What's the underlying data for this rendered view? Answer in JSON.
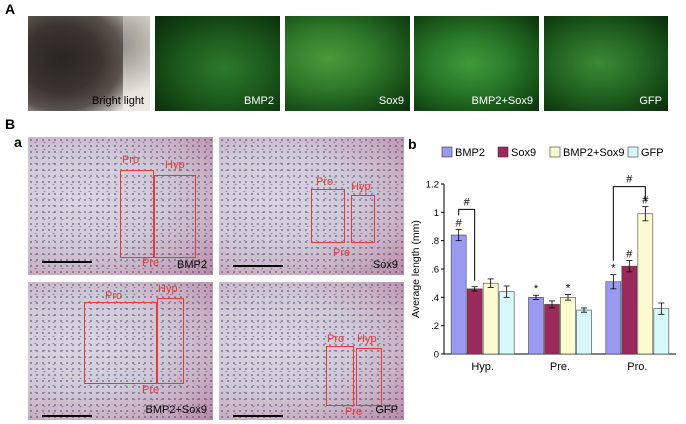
{
  "labels": {
    "A": "A",
    "B": "B",
    "a": "a",
    "b": "b"
  },
  "rowA": [
    {
      "name": "bright-light-panel",
      "label": "Bright light"
    },
    {
      "name": "bmp2-fluor-panel",
      "label": "BMP2"
    },
    {
      "name": "sox9-fluor-panel",
      "label": "Sox9"
    },
    {
      "name": "bmp2-sox9-fluor-panel",
      "label": "BMP2+Sox9"
    },
    {
      "name": "gfp-fluor-panel",
      "label": "GFP"
    }
  ],
  "histology": [
    {
      "label": "BMP2",
      "pro": "Pro",
      "hyp": "Hyp",
      "pre": "Pre"
    },
    {
      "label": "Sox9",
      "pro": "Pro",
      "hyp": "Hyp",
      "pre": "Pre"
    },
    {
      "label": "BMP2+Sox9",
      "pro": "Pro",
      "hyp": "Hyp",
      "pre": "Pre"
    },
    {
      "label": "GFP",
      "pro": "Pro",
      "hyp": "Hyp",
      "pre": "Pre"
    }
  ],
  "chart_data": {
    "type": "bar",
    "title": "",
    "xlabel": "",
    "ylabel": "Average length (mm)",
    "ylim": [
      0,
      1.2
    ],
    "yticks": [
      "0",
      ".2",
      ".4",
      ".6",
      ".8",
      "1",
      "1.2"
    ],
    "categories": [
      "Hyp.",
      "Pre.",
      "Pro."
    ],
    "legend_position": "top",
    "series": [
      {
        "name": "BMP2",
        "color": "#9a9af0",
        "values": [
          0.84,
          0.4,
          0.51
        ],
        "errors": [
          0.04,
          0.015,
          0.05
        ],
        "marks": [
          "#",
          "*",
          "*"
        ]
      },
      {
        "name": "Sox9",
        "color": "#9b2a5c",
        "values": [
          0.46,
          0.35,
          0.62
        ],
        "errors": [
          0.015,
          0.025,
          0.04
        ],
        "marks": [
          "",
          "",
          "#"
        ]
      },
      {
        "name": "BMP2+Sox9",
        "color": "#fdfcd0",
        "values": [
          0.5,
          0.4,
          0.99
        ],
        "errors": [
          0.03,
          0.02,
          0.05
        ],
        "marks": [
          "",
          "*",
          "#"
        ]
      },
      {
        "name": "GFP",
        "color": "#d8f8fb",
        "values": [
          0.44,
          0.31,
          0.32
        ],
        "errors": [
          0.04,
          0.015,
          0.04
        ],
        "marks": [
          "",
          "",
          ""
        ]
      }
    ],
    "brackets": [
      {
        "category": "Hyp.",
        "from_series": 0,
        "to_series": 1,
        "label": "#"
      },
      {
        "category": "Pro.",
        "from_series": 0,
        "to_series": 2,
        "label": "#"
      }
    ]
  }
}
